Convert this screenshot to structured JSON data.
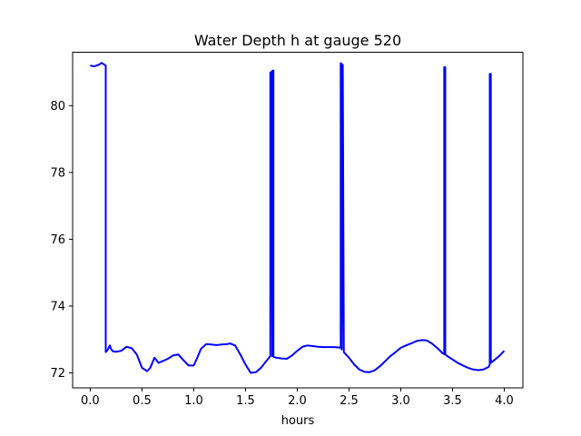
{
  "chart_data": {
    "type": "line",
    "title": "Water Depth h at gauge 520",
    "xlabel": "hours",
    "ylabel": "",
    "xlim": [
      -0.17,
      4.18
    ],
    "ylim": [
      71.55,
      81.6
    ],
    "grid": false,
    "x_ticks": [
      {
        "value": 0.0,
        "label": "0.0"
      },
      {
        "value": 0.5,
        "label": "0.5"
      },
      {
        "value": 1.0,
        "label": "1.0"
      },
      {
        "value": 1.5,
        "label": "1.5"
      },
      {
        "value": 2.0,
        "label": "2.0"
      },
      {
        "value": 2.5,
        "label": "2.5"
      },
      {
        "value": 3.0,
        "label": "3.0"
      },
      {
        "value": 3.5,
        "label": "3.5"
      },
      {
        "value": 4.0,
        "label": "4.0"
      }
    ],
    "y_ticks": [
      {
        "value": 72,
        "label": "72"
      },
      {
        "value": 74,
        "label": "74"
      },
      {
        "value": 76,
        "label": "76"
      },
      {
        "value": 78,
        "label": "78"
      },
      {
        "value": 80,
        "label": "80"
      }
    ],
    "series": [
      {
        "color": "#0000ff",
        "x": [
          0.0,
          0.04,
          0.08,
          0.11,
          0.15,
          0.15,
          0.17,
          0.19,
          0.2,
          0.22,
          0.25,
          0.3,
          0.35,
          0.4,
          0.45,
          0.5,
          0.55,
          0.58,
          0.62,
          0.66,
          0.7,
          0.75,
          0.8,
          0.85,
          0.9,
          0.95,
          1.0,
          1.03,
          1.07,
          1.12,
          1.17,
          1.22,
          1.27,
          1.32,
          1.35,
          1.4,
          1.45,
          1.5,
          1.55,
          1.6,
          1.65,
          1.7,
          1.74,
          1.74,
          1.75,
          1.76,
          1.76,
          1.77,
          1.77,
          1.8,
          1.85,
          1.9,
          1.95,
          2.0,
          2.05,
          2.1,
          2.15,
          2.2,
          2.25,
          2.3,
          2.35,
          2.4,
          2.42,
          2.42,
          2.43,
          2.43,
          2.44,
          2.44,
          2.45,
          2.45,
          2.5,
          2.55,
          2.6,
          2.65,
          2.7,
          2.75,
          2.8,
          2.85,
          2.9,
          2.95,
          3.0,
          3.05,
          3.1,
          3.15,
          3.2,
          3.25,
          3.3,
          3.35,
          3.4,
          3.42,
          3.42,
          3.43,
          3.43,
          3.45,
          3.5,
          3.55,
          3.6,
          3.65,
          3.7,
          3.75,
          3.8,
          3.85,
          3.86,
          3.86,
          3.87,
          3.87,
          3.9,
          3.95,
          4.0
        ],
        "y": [
          81.2,
          81.18,
          81.22,
          81.28,
          81.2,
          72.62,
          72.7,
          72.82,
          72.72,
          72.64,
          72.63,
          72.66,
          72.78,
          72.74,
          72.55,
          72.15,
          72.05,
          72.15,
          72.45,
          72.3,
          72.35,
          72.42,
          72.52,
          72.55,
          72.38,
          72.22,
          72.22,
          72.42,
          72.72,
          72.86,
          72.85,
          72.83,
          72.85,
          72.86,
          72.88,
          72.82,
          72.55,
          72.25,
          72.0,
          72.02,
          72.15,
          72.35,
          72.5,
          81.0,
          81.0,
          72.5,
          81.05,
          81.05,
          72.48,
          72.45,
          72.43,
          72.42,
          72.52,
          72.66,
          72.78,
          72.82,
          72.8,
          72.78,
          72.77,
          72.77,
          72.77,
          72.76,
          72.75,
          81.27,
          81.25,
          72.7,
          81.22,
          81.2,
          72.68,
          72.62,
          72.45,
          72.25,
          72.1,
          72.03,
          72.02,
          72.08,
          72.2,
          72.35,
          72.5,
          72.62,
          72.75,
          72.82,
          72.88,
          72.95,
          72.98,
          72.97,
          72.88,
          72.75,
          72.6,
          72.56,
          81.15,
          81.15,
          72.55,
          72.5,
          72.4,
          72.3,
          72.22,
          72.15,
          72.1,
          72.08,
          72.1,
          72.18,
          72.25,
          80.95,
          80.95,
          72.3,
          72.37,
          72.5,
          72.66
        ]
      }
    ]
  }
}
